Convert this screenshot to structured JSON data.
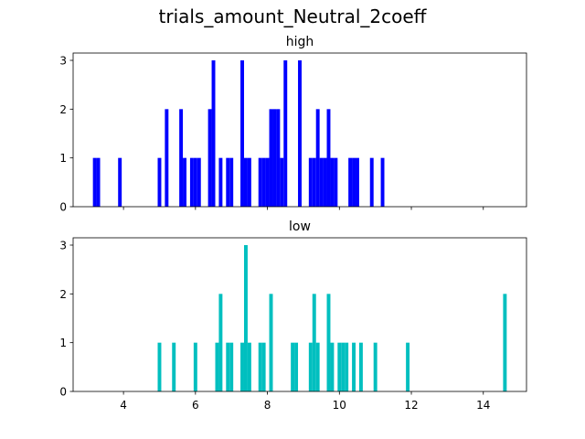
{
  "figure": {
    "title": "trials_amount_Neutral_2coeff"
  },
  "chart_data": [
    {
      "type": "bar",
      "title": "high",
      "color": "#0000ff",
      "bin_width": 0.1,
      "xlim": [
        2.6,
        15.2
      ],
      "ylim": [
        0,
        3.15
      ],
      "xticks": [
        4,
        6,
        8,
        10,
        12,
        14
      ],
      "xtick_labels_shown": false,
      "yticks": [
        0,
        1,
        2,
        3
      ],
      "grid": false,
      "x": [
        3.2,
        3.3,
        3.9,
        5.0,
        5.2,
        5.6,
        5.7,
        5.9,
        6.0,
        6.1,
        6.4,
        6.5,
        6.7,
        6.9,
        7.0,
        7.3,
        7.4,
        7.5,
        7.8,
        7.9,
        8.0,
        8.1,
        8.2,
        8.3,
        8.4,
        8.5,
        8.9,
        9.2,
        9.3,
        9.4,
        9.5,
        9.6,
        9.7,
        9.8,
        9.9,
        10.3,
        10.4,
        10.5,
        10.9,
        11.2
      ],
      "values": [
        1,
        1,
        1,
        1,
        2,
        2,
        1,
        1,
        1,
        1,
        2,
        3,
        1,
        1,
        1,
        3,
        1,
        1,
        1,
        1,
        1,
        2,
        2,
        2,
        1,
        3,
        3,
        1,
        1,
        2,
        1,
        1,
        2,
        1,
        1,
        1,
        1,
        1,
        1,
        1
      ]
    },
    {
      "type": "bar",
      "title": "low",
      "color": "#00bfbf",
      "bin_width": 0.1,
      "xlim": [
        2.6,
        15.2
      ],
      "ylim": [
        0,
        3.15
      ],
      "xticks": [
        4,
        6,
        8,
        10,
        12,
        14
      ],
      "xtick_labels": [
        "4",
        "6",
        "8",
        "10",
        "12",
        "14"
      ],
      "yticks": [
        0,
        1,
        2,
        3
      ],
      "grid": false,
      "x": [
        5.0,
        5.4,
        6.0,
        6.6,
        6.7,
        6.9,
        7.0,
        7.3,
        7.4,
        7.5,
        7.8,
        7.9,
        8.1,
        8.7,
        8.8,
        9.2,
        9.3,
        9.4,
        9.7,
        9.8,
        10.0,
        10.1,
        10.2,
        10.4,
        10.6,
        11.0,
        11.9,
        14.6
      ],
      "values": [
        1,
        1,
        1,
        1,
        2,
        1,
        1,
        1,
        3,
        1,
        1,
        1,
        2,
        1,
        1,
        1,
        2,
        1,
        2,
        1,
        1,
        1,
        1,
        1,
        1,
        1,
        1,
        2
      ]
    }
  ]
}
